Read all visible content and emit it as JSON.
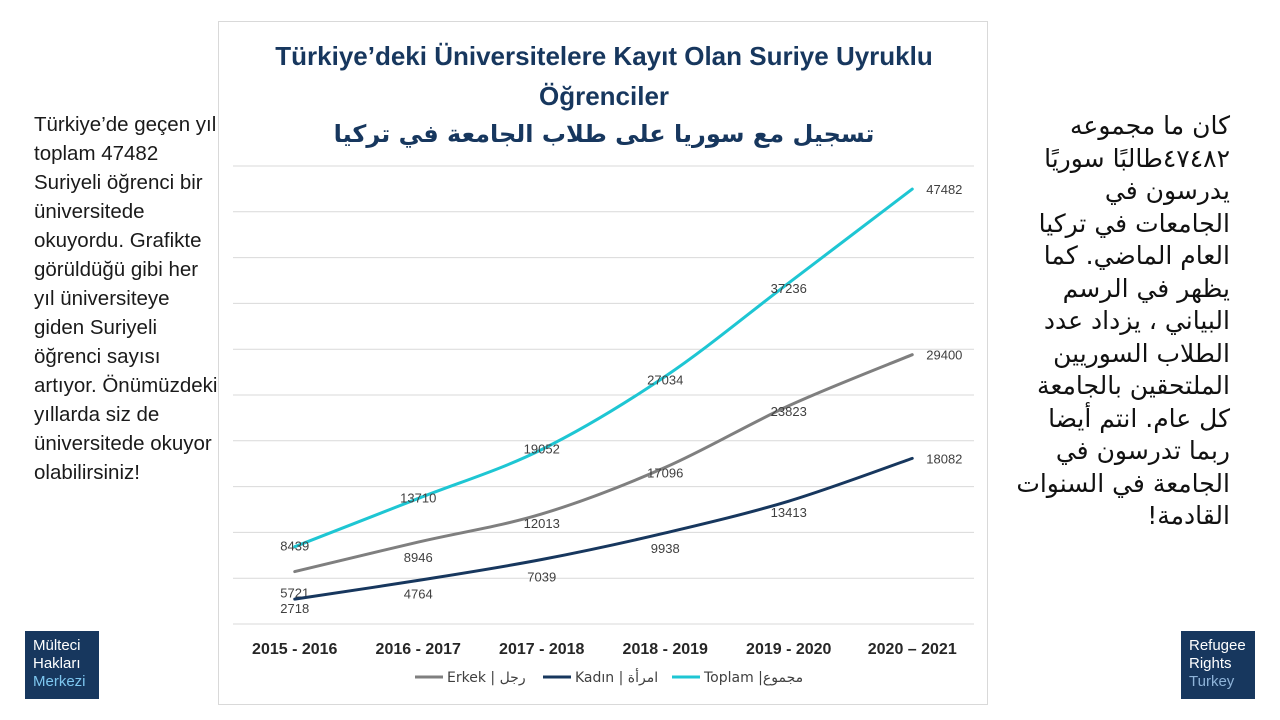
{
  "left_text": "Türkiye’de geçen yıl toplam 47482 Suriyeli öğrenci bir üniversitede okuyordu. Grafikte görüldüğü gibi her yıl üniversiteye giden Suriyeli öğrenci sayısı artıyor. Önümüzdeki yıllarda siz de üniversitede okuyor olabilirsiniz!",
  "right_text": "كان ما مجموعه ٤٧٤٨٢طالبًا سوريًا يدرسون في الجامعات في تركيا العام الماضي. كما يظهر في الرسم البياني ، يزداد عدد الطلاب السوريين الملتحقين بالجامعة كل عام. انتم أيضا ربما تدرسون في الجامعة في السنوات القادمة!",
  "logo_left": {
    "line1": "Mülteci",
    "line2": "Hakları",
    "line3": "Merkezi"
  },
  "logo_right": {
    "line1": "Refugee",
    "line2": "Rights",
    "line3": "Turkey"
  },
  "colors": {
    "title": "#17375e",
    "erkek": "#7f7f7f",
    "kadin": "#17375e",
    "toplam": "#1ec6d3",
    "grid": "#d9d9d9",
    "logo_bg": "#17375e"
  },
  "chart_data": {
    "type": "line",
    "title": "Türkiye’deki Üniversitelere Kayıt Olan Suriye Uyruklu Öğrenciler",
    "subtitle": "تسجيل مع سوريا على طلاب الجامعة في تركيا",
    "categories": [
      "2015 - 2016",
      "2016 - 2017",
      "2017 - 2018",
      "2018 - 2019",
      "2019 - 2020",
      "2020 – 2021"
    ],
    "ylim": [
      0,
      50000
    ],
    "grid": true,
    "legend_position": "bottom",
    "series": [
      {
        "name": "Erkek | رجل",
        "color": "#7f7f7f",
        "values": [
          5721,
          8946,
          12013,
          17096,
          23823,
          29400
        ]
      },
      {
        "name": "Kadın | امرأة",
        "color": "#17375e",
        "values": [
          2718,
          4764,
          7039,
          9938,
          13413,
          18082
        ]
      },
      {
        "name": "Toplam |مجموع",
        "color": "#1ec6d3",
        "values": [
          8439,
          13710,
          19052,
          27034,
          37236,
          47482
        ]
      }
    ]
  }
}
